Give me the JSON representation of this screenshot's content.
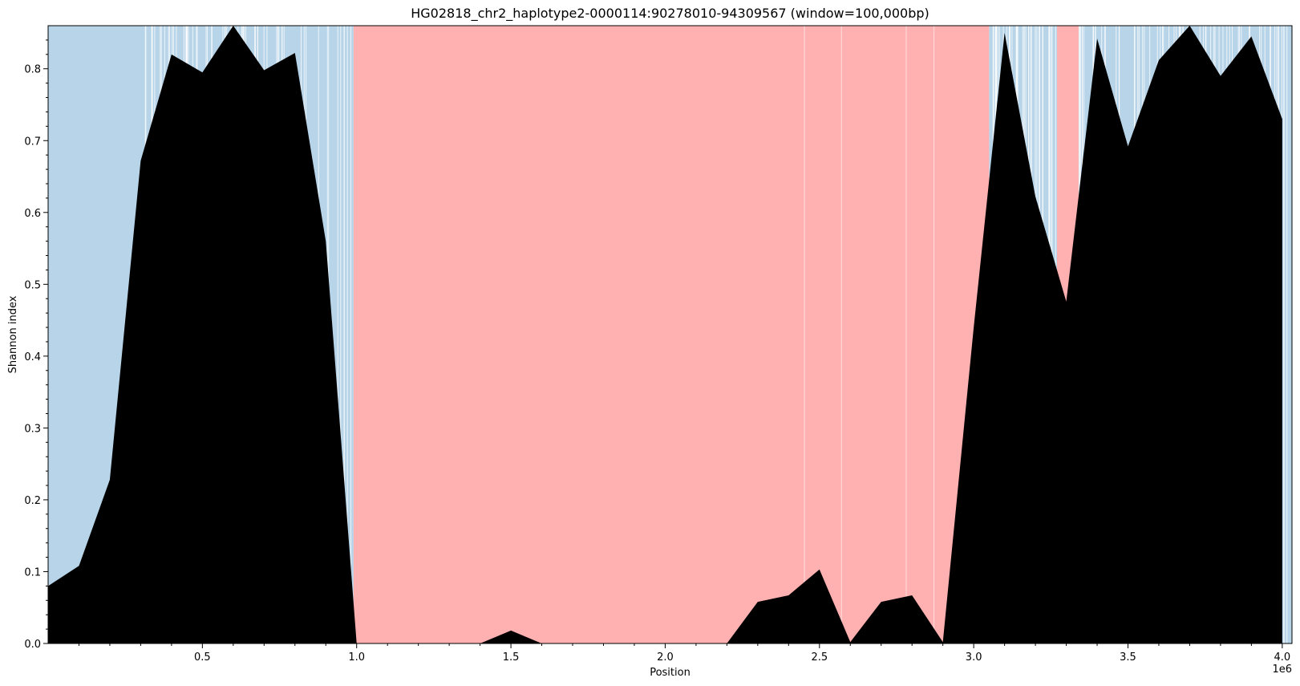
{
  "chart_data": {
    "type": "area",
    "title": "HG02818_chr2_haplotype2-0000114:90278010-94309567 (window=100,000bp)",
    "xlabel": "Position",
    "ylabel": "Shannon index",
    "x_offset_label": "1e6",
    "xlim": [
      0,
      4031557
    ],
    "ylim": [
      0,
      0.86
    ],
    "x_ticks": [
      500000,
      1000000,
      1500000,
      2000000,
      2500000,
      3000000,
      3500000,
      4000000
    ],
    "x_tick_labels": [
      "0.5",
      "1.0",
      "1.5",
      "2.0",
      "2.5",
      "3.0",
      "3.5",
      "4.0"
    ],
    "y_ticks": [
      0.0,
      0.1,
      0.2,
      0.3,
      0.4,
      0.5,
      0.6,
      0.7,
      0.8
    ],
    "y_tick_labels": [
      "0.0",
      "0.1",
      "0.2",
      "0.3",
      "0.4",
      "0.5",
      "0.6",
      "0.7",
      "0.8"
    ],
    "grid": false,
    "colors": {
      "area": "#000000",
      "low_band": "#b7d4e8",
      "high_band": "#ffb0b0"
    },
    "series": [
      {
        "x": [
          0,
          100000,
          200000,
          300000,
          400000,
          500000,
          600000,
          700000,
          800000,
          900000,
          1000000,
          1100000,
          1200000,
          1300000,
          1400000,
          1500000,
          1600000,
          1700000,
          1800000,
          1900000,
          2000000,
          2100000,
          2200000,
          2300000,
          2400000,
          2500000,
          2600000,
          2700000,
          2800000,
          2900000,
          3000000,
          3100000,
          3200000,
          3300000,
          3400000,
          3500000,
          3600000,
          3700000,
          3800000,
          3900000,
          4000000
        ],
        "y": [
          0.08,
          0.108,
          0.228,
          0.672,
          0.82,
          0.795,
          0.86,
          0.798,
          0.822,
          0.56,
          0.0,
          0.0,
          0.0,
          0.0,
          0.0,
          0.018,
          0.0,
          0.0,
          0.0,
          0.0,
          0.0,
          0.0,
          0.0,
          0.058,
          0.067,
          0.103,
          0.002,
          0.058,
          0.067,
          0.002,
          0.44,
          0.85,
          0.622,
          0.476,
          0.842,
          0.692,
          0.812,
          0.86,
          0.79,
          0.845,
          0.73
        ]
      }
    ],
    "background_spans": [
      {
        "start": 0,
        "end": 990000,
        "category": "low"
      },
      {
        "start": 990000,
        "end": 3050000,
        "category": "high"
      },
      {
        "start": 3050000,
        "end": 3270000,
        "category": "low"
      },
      {
        "start": 3270000,
        "end": 3340000,
        "category": "high"
      },
      {
        "start": 3340000,
        "end": 4031557,
        "category": "low"
      }
    ]
  }
}
